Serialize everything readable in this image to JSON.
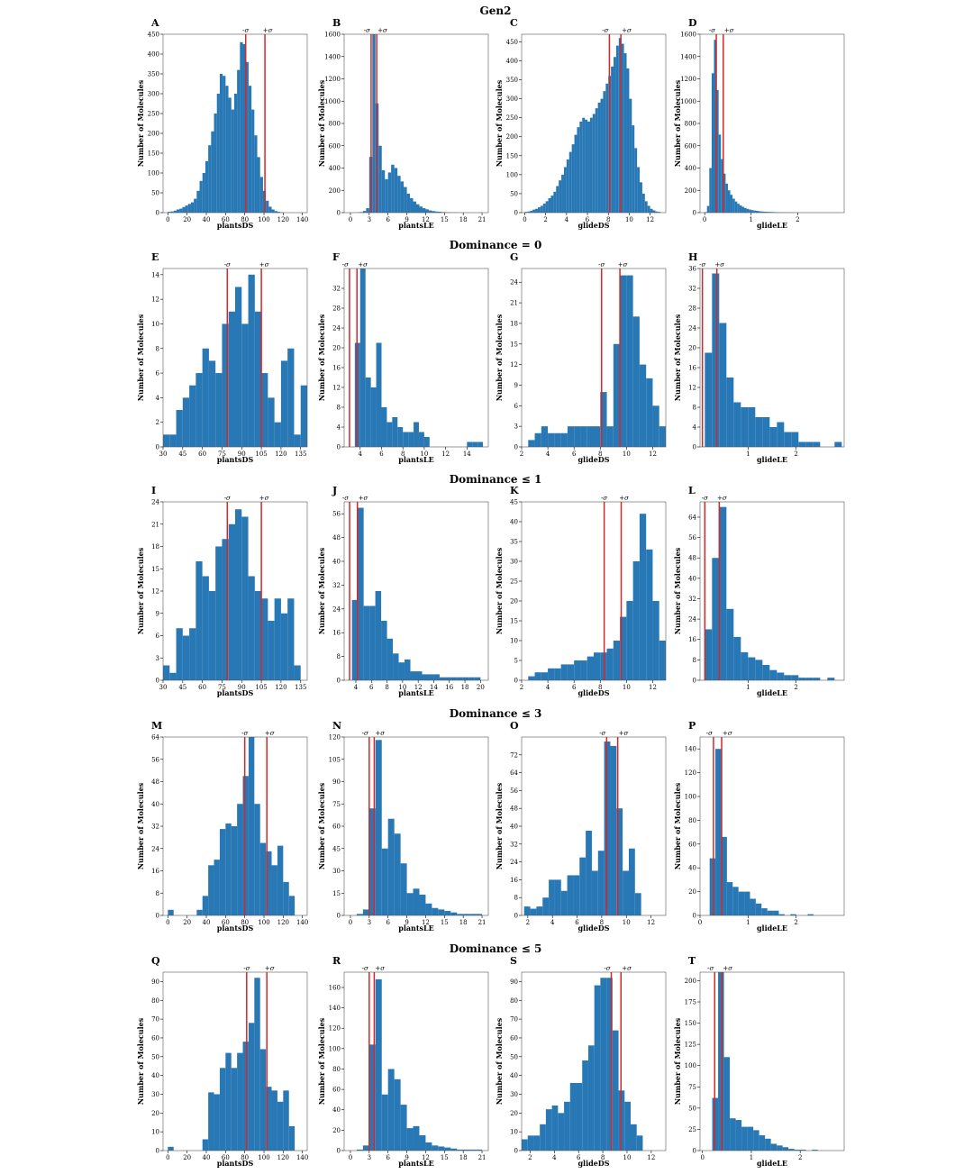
{
  "colors": {
    "bar": "#2878b5",
    "sigma_line": "#d62728",
    "frame": "#555555"
  },
  "ylabel": "Number of Molecules",
  "sigma_labels": {
    "minus": "-σ",
    "plus": "+σ"
  },
  "rows": [
    "Gen2",
    "Dominance = 0",
    "Dominance ≤ 1",
    "Dominance ≤ 3",
    "Dominance ≤ 5"
  ],
  "chart_data": [
    {
      "panel": "A",
      "type": "bar",
      "xlabel": "plantsDS",
      "ylabel": "Number of Molecules",
      "xlim": [
        -5,
        145
      ],
      "ylim": [
        0,
        450
      ],
      "xticks": [
        0,
        20,
        40,
        60,
        80,
        100,
        120,
        140
      ],
      "yticks": [
        0,
        50,
        100,
        150,
        200,
        250,
        300,
        350,
        400,
        450
      ],
      "sigma": [
        81,
        101
      ],
      "bin_start": 0,
      "bin_width": 3,
      "values": [
        2,
        3,
        5,
        8,
        10,
        14,
        18,
        22,
        26,
        35,
        55,
        80,
        100,
        130,
        170,
        205,
        250,
        300,
        350,
        345,
        320,
        290,
        260,
        300,
        360,
        430,
        425,
        380,
        320,
        260,
        195,
        140,
        90,
        55,
        30,
        15,
        8,
        4,
        2,
        1
      ]
    },
    {
      "panel": "B",
      "type": "bar",
      "xlabel": "plantsLE",
      "ylabel": "Number of Molecules",
      "xlim": [
        -1,
        22
      ],
      "ylim": [
        0,
        1600
      ],
      "xticks": [
        0,
        3,
        6,
        9,
        12,
        15,
        18,
        21
      ],
      "yticks": [
        0,
        200,
        400,
        600,
        800,
        1000,
        1200,
        1400,
        1600
      ],
      "sigma": [
        3.3,
        4.2
      ],
      "bin_start": 0,
      "bin_width": 0.5,
      "values": [
        0,
        0,
        2,
        5,
        15,
        40,
        500,
        1600,
        980,
        600,
        380,
        300,
        360,
        430,
        400,
        330,
        280,
        230,
        170,
        130,
        100,
        75,
        55,
        40,
        30,
        20,
        14,
        10,
        8,
        5,
        4,
        3,
        2,
        2,
        1,
        1,
        1,
        1,
        0,
        0,
        0,
        1
      ]
    },
    {
      "panel": "C",
      "type": "bar",
      "xlabel": "glideDS",
      "ylabel": "Number of Molecules",
      "xlim": [
        -0.3,
        13.5
      ],
      "ylim": [
        0,
        470
      ],
      "xticks": [
        0,
        2,
        4,
        6,
        8,
        10,
        12
      ],
      "yticks": [
        0,
        50,
        100,
        150,
        200,
        250,
        300,
        350,
        400,
        450
      ],
      "sigma": [
        8.1,
        9.2
      ],
      "bin_start": 0,
      "bin_width": 0.25,
      "values": [
        2,
        3,
        5,
        8,
        10,
        14,
        18,
        24,
        30,
        38,
        45,
        55,
        70,
        85,
        100,
        120,
        140,
        160,
        180,
        205,
        225,
        240,
        250,
        245,
        240,
        250,
        260,
        275,
        290,
        300,
        320,
        340,
        360,
        385,
        410,
        440,
        460,
        445,
        420,
        380,
        300,
        230,
        170,
        120,
        80,
        50,
        30,
        18,
        10,
        6,
        3,
        2
      ]
    },
    {
      "panel": "D",
      "type": "bar",
      "xlabel": "glideLE",
      "ylabel": "Number of Molecules",
      "xlim": [
        -0.1,
        3.0
      ],
      "ylim": [
        0,
        1600
      ],
      "xticks": [
        0,
        1,
        2
      ],
      "yticks": [
        0,
        200,
        400,
        600,
        800,
        1000,
        1200,
        1400,
        1600
      ],
      "sigma": [
        0.25,
        0.4
      ],
      "bin_start": 0,
      "bin_width": 0.05,
      "values": [
        5,
        60,
        400,
        1250,
        1550,
        1100,
        700,
        480,
        350,
        260,
        200,
        160,
        125,
        100,
        80,
        65,
        52,
        42,
        34,
        28,
        23,
        19,
        16,
        13,
        11,
        9,
        8,
        7,
        6,
        5,
        4,
        4,
        3,
        3,
        2,
        2,
        2,
        2,
        1,
        1,
        1,
        1,
        1,
        1,
        1,
        1,
        1,
        1,
        1,
        1,
        1,
        1,
        1,
        1,
        1,
        1,
        1,
        1
      ]
    },
    {
      "panel": "E",
      "type": "bar",
      "xlabel": "plantsDS",
      "ylabel": "Number of Molecules",
      "xlim": [
        30,
        140
      ],
      "ylim": [
        0,
        14.5
      ],
      "xticks": [
        30,
        45,
        60,
        75,
        90,
        105,
        120,
        135
      ],
      "yticks": [
        0,
        2,
        4,
        6,
        8,
        10,
        12,
        14
      ],
      "sigma": [
        79,
        105
      ],
      "bin_start": 30,
      "bin_width": 5,
      "values": [
        1,
        1,
        3,
        4,
        5,
        6,
        8,
        7,
        6,
        10,
        11,
        13,
        10,
        14,
        11,
        6,
        4,
        2,
        7,
        8,
        1,
        5
      ]
    },
    {
      "panel": "F",
      "type": "bar",
      "xlabel": "plantsLE",
      "ylabel": "Number of Molecules",
      "xlim": [
        2.5,
        16
      ],
      "ylim": [
        0,
        36
      ],
      "xticks": [
        4,
        6,
        8,
        10,
        12,
        14
      ],
      "yticks": [
        0,
        4,
        8,
        12,
        16,
        20,
        24,
        28,
        32
      ],
      "sigma": [
        3.0,
        3.7
      ],
      "bin_start": 3.5,
      "bin_width": 0.5,
      "values": [
        21,
        36,
        14,
        12,
        21,
        8,
        5,
        6,
        4,
        3,
        3,
        5,
        3,
        2,
        0,
        0,
        0,
        0,
        0,
        0,
        0,
        1,
        1,
        1,
        0,
        0,
        0,
        0,
        0,
        1
      ]
    },
    {
      "panel": "G",
      "type": "bar",
      "xlabel": "glideDS",
      "ylabel": "Number of Molecules",
      "xlim": [
        2,
        13
      ],
      "ylim": [
        0,
        26
      ],
      "xticks": [
        2,
        4,
        6,
        8,
        10,
        12
      ],
      "yticks": [
        0,
        3,
        6,
        9,
        12,
        15,
        18,
        21,
        24
      ],
      "sigma": [
        8.1,
        9.5
      ],
      "bin_start": 2.5,
      "bin_width": 0.5,
      "values": [
        1,
        2,
        3,
        2,
        2,
        2,
        3,
        3,
        3,
        3,
        3,
        8,
        3,
        15,
        25,
        25,
        19,
        12,
        10,
        6,
        3,
        3
      ]
    },
    {
      "panel": "H",
      "type": "bar",
      "xlabel": "glideLE",
      "ylabel": "Number of Molecules",
      "xlim": [
        0,
        3.0
      ],
      "ylim": [
        0,
        36
      ],
      "xticks": [
        1,
        2
      ],
      "yticks": [
        0,
        4,
        8,
        12,
        16,
        20,
        24,
        28,
        32,
        36
      ],
      "sigma": [
        0.05,
        0.35
      ],
      "bin_start": 0.1,
      "bin_width": 0.15,
      "values": [
        19,
        35,
        25,
        14,
        9,
        8,
        8,
        6,
        6,
        4,
        5,
        3,
        3,
        1,
        1,
        1,
        0,
        0,
        1
      ]
    },
    {
      "panel": "I",
      "type": "bar",
      "xlabel": "plantsDS",
      "ylabel": "Number of Molecules",
      "xlim": [
        30,
        140
      ],
      "ylim": [
        0,
        24
      ],
      "xticks": [
        30,
        45,
        60,
        75,
        90,
        105,
        120,
        135
      ],
      "yticks": [
        0,
        3,
        6,
        9,
        12,
        15,
        18,
        21,
        24
      ],
      "sigma": [
        79,
        105
      ],
      "bin_start": 30,
      "bin_width": 5,
      "values": [
        2,
        1,
        7,
        6,
        7,
        16,
        14,
        12,
        18,
        19,
        21,
        23,
        22,
        14,
        12,
        11,
        8,
        11,
        9,
        11,
        2
      ]
    },
    {
      "panel": "J",
      "type": "bar",
      "xlabel": "plantsLE",
      "ylabel": "Number of Molecules",
      "xlim": [
        2.5,
        21
      ],
      "ylim": [
        0,
        60
      ],
      "xticks": [
        4,
        6,
        8,
        10,
        12,
        14,
        16,
        18,
        20
      ],
      "yticks": [
        0,
        8,
        16,
        24,
        32,
        40,
        48,
        56
      ],
      "sigma": [
        3.2,
        4.2
      ],
      "bin_start": 3.5,
      "bin_width": 0.75,
      "values": [
        27,
        58,
        25,
        25,
        30,
        20,
        14,
        9,
        6,
        7,
        3,
        3,
        2,
        2,
        2,
        1,
        1,
        1,
        1,
        1,
        1,
        1
      ]
    },
    {
      "panel": "K",
      "type": "bar",
      "xlabel": "glideDS",
      "ylabel": "Number of Molecules",
      "xlim": [
        2,
        13
      ],
      "ylim": [
        0,
        45
      ],
      "xticks": [
        2,
        4,
        6,
        8,
        10,
        12
      ],
      "yticks": [
        0,
        5,
        10,
        15,
        20,
        25,
        30,
        35,
        40,
        45
      ],
      "sigma": [
        8.3,
        9.6
      ],
      "bin_start": 2.5,
      "bin_width": 0.5,
      "values": [
        1,
        2,
        2,
        3,
        3,
        4,
        4,
        5,
        5,
        6,
        7,
        7,
        8,
        10,
        16,
        20,
        30,
        42,
        33,
        20,
        10,
        8,
        6
      ]
    },
    {
      "panel": "L",
      "type": "bar",
      "xlabel": "glideLE",
      "ylabel": "Number of Molecules",
      "xlim": [
        0,
        3.0
      ],
      "ylim": [
        0,
        70
      ],
      "xticks": [
        1,
        2
      ],
      "yticks": [
        0,
        8,
        16,
        24,
        32,
        40,
        48,
        56,
        64
      ],
      "sigma": [
        0.1,
        0.4
      ],
      "bin_start": 0.1,
      "bin_width": 0.15,
      "values": [
        20,
        48,
        68,
        28,
        17,
        11,
        9,
        8,
        6,
        4,
        3,
        2,
        2,
        1,
        1,
        1,
        0,
        1
      ]
    },
    {
      "panel": "M",
      "type": "bar",
      "xlabel": "plantsDS",
      "ylabel": "Number of Molecules",
      "xlim": [
        -5,
        145
      ],
      "ylim": [
        0,
        64
      ],
      "xticks": [
        0,
        20,
        40,
        60,
        80,
        100,
        120,
        140
      ],
      "yticks": [
        0,
        8,
        16,
        24,
        32,
        40,
        48,
        56,
        64
      ],
      "sigma": [
        80,
        103
      ],
      "bin_start": 0,
      "bin_width": 6,
      "values": [
        2,
        0,
        0,
        0,
        0,
        2,
        7,
        18,
        20,
        31,
        33,
        32,
        40,
        50,
        64,
        40,
        26,
        23,
        18,
        25,
        12,
        7
      ]
    },
    {
      "panel": "N",
      "type": "bar",
      "xlabel": "plantsLE",
      "ylabel": "Number of Molecules",
      "xlim": [
        -1,
        22
      ],
      "ylim": [
        0,
        120
      ],
      "xticks": [
        0,
        3,
        6,
        9,
        12,
        15,
        18,
        21
      ],
      "yticks": [
        0,
        15,
        30,
        45,
        60,
        75,
        90,
        105,
        120
      ],
      "sigma": [
        3.0,
        3.8
      ],
      "bin_start": 0,
      "bin_width": 1,
      "values": [
        0,
        1,
        4,
        72,
        118,
        45,
        65,
        55,
        35,
        15,
        18,
        14,
        8,
        5,
        4,
        3,
        2,
        1,
        1,
        1,
        1
      ]
    },
    {
      "panel": "O",
      "type": "bar",
      "xlabel": "glideDS",
      "ylabel": "Number of Molecules",
      "xlim": [
        1.5,
        13.2
      ],
      "ylim": [
        0,
        80
      ],
      "xticks": [
        2,
        4,
        6,
        8,
        10,
        12
      ],
      "yticks": [
        0,
        8,
        16,
        24,
        32,
        40,
        48,
        56,
        64,
        72
      ],
      "sigma": [
        8.4,
        9.3
      ],
      "bin_start": 1.7,
      "bin_width": 0.5,
      "values": [
        4,
        3,
        4,
        8,
        16,
        16,
        11,
        18,
        18,
        26,
        38,
        20,
        29,
        78,
        76,
        48,
        20,
        30,
        10
      ]
    },
    {
      "panel": "P",
      "type": "bar",
      "xlabel": "glideLE",
      "ylabel": "Number of Molecules",
      "xlim": [
        0,
        3.0
      ],
      "ylim": [
        0,
        150
      ],
      "xticks": [
        0,
        1,
        2
      ],
      "yticks": [
        0,
        20,
        40,
        60,
        80,
        100,
        120,
        140
      ],
      "sigma": [
        0.28,
        0.45
      ],
      "bin_start": 0.2,
      "bin_width": 0.12,
      "values": [
        48,
        140,
        66,
        28,
        24,
        20,
        20,
        14,
        10,
        6,
        4,
        4,
        1,
        0,
        1,
        0,
        0,
        1
      ]
    },
    {
      "panel": "Q",
      "type": "bar",
      "xlabel": "plantsDS",
      "ylabel": "Number of Molecules",
      "xlim": [
        -5,
        145
      ],
      "ylim": [
        0,
        95
      ],
      "xticks": [
        0,
        20,
        40,
        60,
        80,
        100,
        120,
        140
      ],
      "yticks": [
        0,
        10,
        20,
        30,
        40,
        50,
        60,
        70,
        80,
        90
      ],
      "sigma": [
        82,
        103
      ],
      "bin_start": 0,
      "bin_width": 6,
      "values": [
        2,
        0,
        0,
        0,
        0,
        0,
        6,
        31,
        30,
        44,
        52,
        44,
        52,
        58,
        68,
        92,
        54,
        34,
        32,
        26,
        32,
        13
      ]
    },
    {
      "panel": "R",
      "type": "bar",
      "xlabel": "plantsLE",
      "ylabel": "Number of Molecules",
      "xlim": [
        -1,
        22
      ],
      "ylim": [
        0,
        175
      ],
      "xticks": [
        0,
        3,
        6,
        9,
        12,
        15,
        18,
        21
      ],
      "yticks": [
        0,
        20,
        40,
        60,
        80,
        100,
        120,
        140,
        160
      ],
      "sigma": [
        3.0,
        3.8
      ],
      "bin_start": 0,
      "bin_width": 1,
      "values": [
        0,
        1,
        5,
        104,
        168,
        55,
        80,
        70,
        45,
        22,
        24,
        15,
        8,
        5,
        4,
        3,
        2,
        1,
        1,
        1,
        1
      ]
    },
    {
      "panel": "S",
      "type": "bar",
      "xlabel": "glideDS",
      "ylabel": "Number of Molecules",
      "xlim": [
        1.3,
        13.2
      ],
      "ylim": [
        0,
        95
      ],
      "xticks": [
        2,
        4,
        6,
        8,
        10,
        12
      ],
      "yticks": [
        0,
        10,
        20,
        30,
        40,
        50,
        60,
        70,
        80,
        90
      ],
      "sigma": [
        8.7,
        9.5
      ],
      "bin_start": 1.3,
      "bin_width": 0.5,
      "values": [
        6,
        8,
        8,
        14,
        22,
        24,
        20,
        26,
        36,
        36,
        48,
        56,
        88,
        92,
        92,
        64,
        32,
        26,
        14,
        8
      ]
    },
    {
      "panel": "T",
      "type": "bar",
      "xlabel": "glideLE",
      "ylabel": "Number of Molecules",
      "xlim": [
        -0.05,
        2.9
      ],
      "ylim": [
        0,
        210
      ],
      "xticks": [
        0,
        1,
        2
      ],
      "yticks": [
        0,
        25,
        50,
        75,
        100,
        125,
        150,
        175,
        200
      ],
      "sigma": [
        0.25,
        0.4
      ],
      "bin_start": 0.2,
      "bin_width": 0.12,
      "values": [
        62,
        210,
        110,
        38,
        36,
        28,
        28,
        24,
        18,
        14,
        8,
        6,
        4,
        2,
        1,
        1,
        0,
        1
      ]
    }
  ]
}
